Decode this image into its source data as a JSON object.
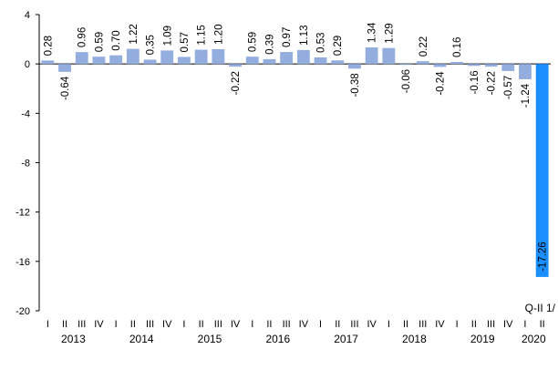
{
  "chart_data": {
    "type": "bar",
    "title": "",
    "xlabel": "",
    "ylabel": "",
    "ylim": [
      -20,
      4
    ],
    "yticks": [
      4,
      0,
      -4,
      -8,
      -12,
      -16,
      -20
    ],
    "grid": false,
    "legend": "none",
    "bar_color": "#93ADDF",
    "highlight_color": "#1A8FFF",
    "highlight_label": "Q-II 1/",
    "quarters": [
      "I",
      "II",
      "III",
      "IV",
      "I",
      "II",
      "III",
      "IV",
      "I",
      "II",
      "III",
      "IV",
      "I",
      "II",
      "III",
      "IV",
      "I",
      "II",
      "III",
      "IV",
      "I",
      "II",
      "III",
      "IV",
      "I",
      "II",
      "III",
      "IV",
      "I",
      "II"
    ],
    "years": [
      "2013",
      "2014",
      "2015",
      "2016",
      "2017",
      "2018",
      "2019",
      "2020"
    ],
    "values": [
      0.28,
      -0.64,
      0.96,
      0.59,
      0.7,
      1.22,
      0.35,
      1.09,
      0.57,
      1.15,
      1.2,
      -0.22,
      0.59,
      0.39,
      0.97,
      1.13,
      0.53,
      0.29,
      -0.38,
      1.34,
      1.29,
      -0.06,
      0.22,
      -0.24,
      0.16,
      -0.16,
      -0.22,
      -0.57,
      -1.24,
      -17.26
    ],
    "data_labels": [
      "0.28",
      "-0.64",
      "0.96",
      "0.59",
      "0.70",
      "1.22",
      "0.35",
      "1.09",
      "0.57",
      "1.15",
      "1.20",
      "-0.22",
      "0.59",
      "0.39",
      "0.97",
      "1.13",
      "0.53",
      "0.29",
      "-0.38",
      "1.34",
      "1.29",
      "-0.06",
      "0.22",
      "-0.24",
      "0.16",
      "-0.16",
      "-0.22",
      "-0.57",
      "-1.24",
      "-17.26"
    ]
  }
}
